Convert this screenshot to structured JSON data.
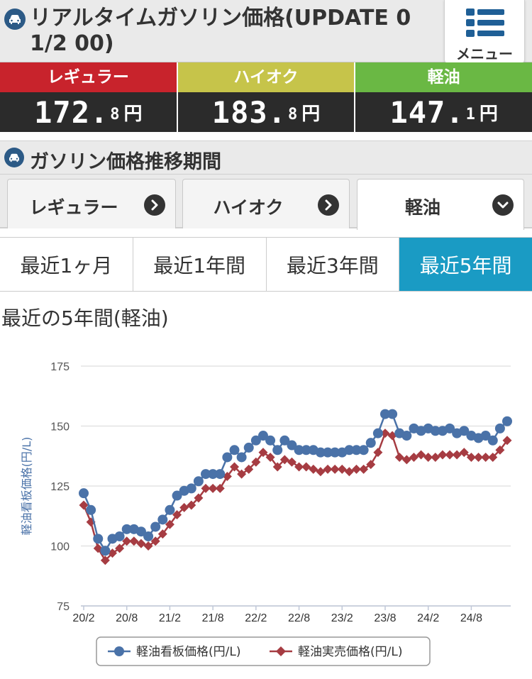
{
  "header": {
    "title": "リアルタイムガソリン価格(UPDATE 01/2 00)",
    "menu_label": "メニュー"
  },
  "prices": [
    {
      "label": "レギュラー",
      "color": "#c8232c",
      "big": "172.",
      "small": "8",
      "unit": "円"
    },
    {
      "label": "ハイオク",
      "color": "#c6c44a",
      "big": "183.",
      "small": "8",
      "unit": "円"
    },
    {
      "label": "軽油",
      "color": "#6ab844",
      "big": "147.",
      "small": "1",
      "unit": "円"
    }
  ],
  "section": {
    "title": "ガソリン価格推移期間"
  },
  "fuel_tabs": [
    {
      "label": "レギュラー",
      "active": false,
      "icon": "chevron-right-icon"
    },
    {
      "label": "ハイオク",
      "active": false,
      "icon": "chevron-right-icon"
    },
    {
      "label": "軽油",
      "active": true,
      "icon": "chevron-down-icon"
    }
  ],
  "period_tabs": [
    {
      "label": "最近1ヶ月",
      "active": false
    },
    {
      "label": "最近1年間",
      "active": false
    },
    {
      "label": "最近3年間",
      "active": false
    },
    {
      "label": "最近5年間",
      "active": true
    }
  ],
  "chart_title": "最近の5年間(軽油)",
  "chart_data": {
    "type": "line",
    "ylabel": "軽油看板価格(円/L)",
    "ylim": [
      75,
      175
    ],
    "yticks": [
      75,
      100,
      125,
      150,
      175
    ],
    "xticks": [
      "20/2",
      "20/8",
      "21/2",
      "21/8",
      "22/2",
      "22/8",
      "23/2",
      "23/8",
      "24/2",
      "24/8"
    ],
    "legend_position": "bottom",
    "grid": true,
    "series": [
      {
        "name": "軽油看板価格(円/L)",
        "color": "#4a72a8",
        "marker": "circle",
        "values": [
          122,
          115,
          103,
          98,
          103,
          104,
          107,
          107,
          106,
          104,
          108,
          111,
          115,
          121,
          123,
          124,
          127,
          130,
          130,
          130,
          137,
          140,
          137,
          141,
          144,
          146,
          144,
          140,
          144,
          142,
          140,
          140,
          140,
          139,
          139,
          139,
          139,
          140,
          140,
          140,
          143,
          147,
          155,
          155,
          147,
          146,
          149,
          148,
          149,
          148,
          148,
          149,
          147,
          148,
          146,
          145,
          146,
          144,
          149,
          152
        ]
      },
      {
        "name": "軽油実売価格(円/L)",
        "color": "#a63c42",
        "marker": "diamond",
        "values": [
          117,
          110,
          99,
          94,
          97,
          99,
          102,
          102,
          101,
          100,
          102,
          105,
          109,
          113,
          116,
          117,
          120,
          124,
          124,
          124,
          129,
          133,
          130,
          132,
          135,
          139,
          137,
          133,
          136,
          135,
          133,
          133,
          132,
          131,
          132,
          132,
          132,
          131,
          132,
          132,
          134,
          139,
          147,
          146,
          137,
          136,
          137,
          138,
          137,
          137,
          138,
          138,
          138,
          139,
          137,
          137,
          137,
          137,
          140,
          144
        ]
      }
    ]
  }
}
